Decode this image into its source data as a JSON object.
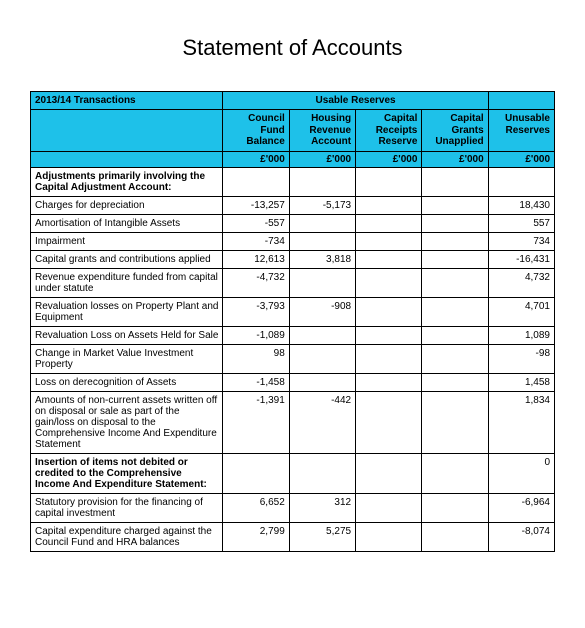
{
  "title": "Statement of Accounts",
  "header": {
    "transactions_label": "2013/14 Transactions",
    "usable_reserves_label": "Usable Reserves",
    "columns": {
      "c1": "Council\nFund\nBalance",
      "c2": "Housing\nRevenue\nAccount",
      "c3": "Capital\nReceipts\nReserve",
      "c4": "Capital\nGrants\nUnapplied",
      "c5": "Unusable\nReserves"
    },
    "unit": "£'000"
  },
  "colors": {
    "header_bg": "#1ec1e9",
    "border": "#000000",
    "text": "#000000",
    "page_bg": "#ffffff"
  },
  "rows": [
    {
      "label": "Adjustments primarily involving the Capital Adjustment Account:",
      "bold": true,
      "v": [
        "",
        "",
        "",
        "",
        ""
      ]
    },
    {
      "label": "Charges for depreciation",
      "v": [
        "-13,257",
        "-5,173",
        "",
        "",
        "18,430"
      ]
    },
    {
      "label": "Amortisation of Intangible Assets",
      "v": [
        "-557",
        "",
        "",
        "",
        "557"
      ]
    },
    {
      "label": "Impairment",
      "v": [
        "-734",
        "",
        "",
        "",
        "734"
      ]
    },
    {
      "label": "Capital grants and contributions applied",
      "v": [
        "12,613",
        "3,818",
        "",
        "",
        "-16,431"
      ]
    },
    {
      "label": "Revenue expenditure funded from capital under statute",
      "v": [
        "-4,732",
        "",
        "",
        "",
        "4,732"
      ]
    },
    {
      "label": "Revaluation losses on Property Plant and Equipment",
      "v": [
        "-3,793",
        "-908",
        "",
        "",
        "4,701"
      ]
    },
    {
      "label": "Revaluation Loss on Assets Held for Sale",
      "v": [
        "-1,089",
        "",
        "",
        "",
        "1,089"
      ]
    },
    {
      "label": "Change in Market Value Investment Property",
      "v": [
        "98",
        "",
        "",
        "",
        "-98"
      ]
    },
    {
      "label": "Loss on derecognition of Assets",
      "v": [
        "-1,458",
        "",
        "",
        "",
        "1,458"
      ]
    },
    {
      "label": "Amounts of non-current assets written off on disposal or sale as part of the gain/loss on disposal to the Comprehensive Income And Expenditure Statement",
      "v": [
        "-1,391",
        "-442",
        "",
        "",
        "1,834"
      ]
    },
    {
      "label": "Insertion of items not debited or credited to the Comprehensive Income And Expenditure Statement:",
      "bold": true,
      "v": [
        "",
        "",
        "",
        "",
        "0"
      ]
    },
    {
      "label": "Statutory provision for the financing of capital investment",
      "v": [
        "6,652",
        "312",
        "",
        "",
        "-6,964"
      ]
    },
    {
      "label": "Capital expenditure charged against the Council Fund and HRA balances",
      "v": [
        "2,799",
        "5,275",
        "",
        "",
        "-8,074"
      ]
    }
  ]
}
